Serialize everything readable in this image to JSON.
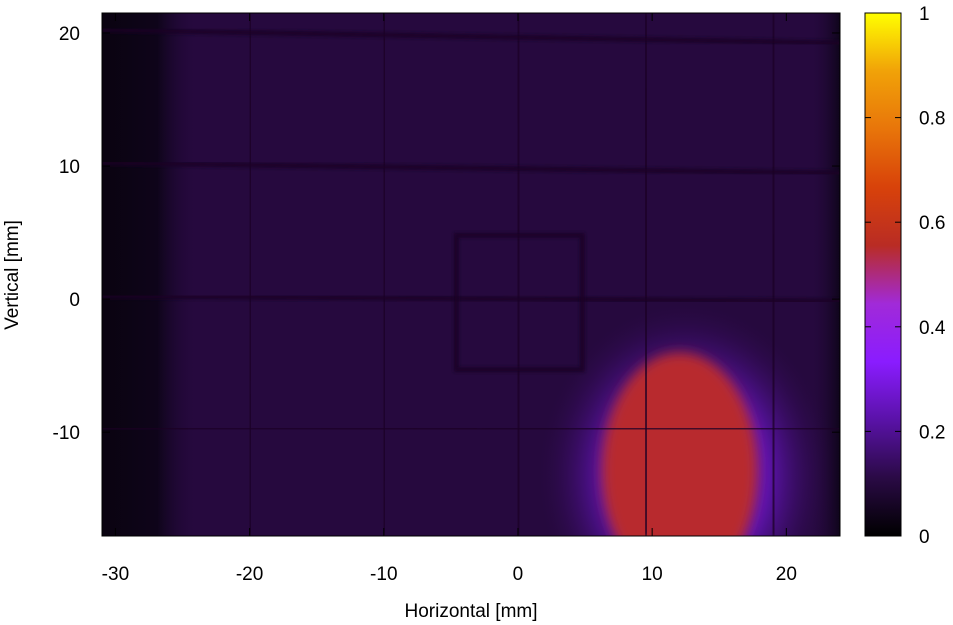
{
  "chart_data": {
    "type": "heatmap",
    "xlabel": "Horizontal [mm]",
    "ylabel": "Vertical [mm]",
    "xlim": [
      -31,
      24
    ],
    "ylim": [
      -17.8,
      21.5
    ],
    "x_ticks": [
      -30,
      -20,
      -10,
      0,
      10,
      20
    ],
    "y_ticks": [
      20,
      10,
      0,
      -10
    ],
    "colorbar": {
      "range": [
        0,
        1
      ],
      "ticks": [
        0,
        0.2,
        0.4,
        0.6,
        0.8,
        1
      ],
      "tick_labels": [
        "0",
        "0.2",
        "0.4",
        "0.6",
        "0.8",
        "1"
      ],
      "colormap": [
        "#000000",
        "#2a0a45",
        "#5a12a8",
        "#8a1cff",
        "#a12ad8",
        "#b92c24",
        "#d8420a",
        "#e8750a",
        "#f1a208",
        "#ffff00"
      ]
    },
    "background_intensity": 0.1,
    "hot_spot": {
      "center": [
        12.5,
        -12.5
      ],
      "core_intensity": 0.55,
      "halo_intensity": 0.25
    },
    "grid_lines_mm": {
      "vertical": [
        -20,
        -10,
        0,
        9.5,
        19
      ],
      "horizontal": [
        20,
        10,
        0,
        -10
      ]
    },
    "square_mask_mm": {
      "x": [
        -4.6,
        4.8
      ],
      "y": [
        -5.3,
        4.8
      ]
    }
  }
}
